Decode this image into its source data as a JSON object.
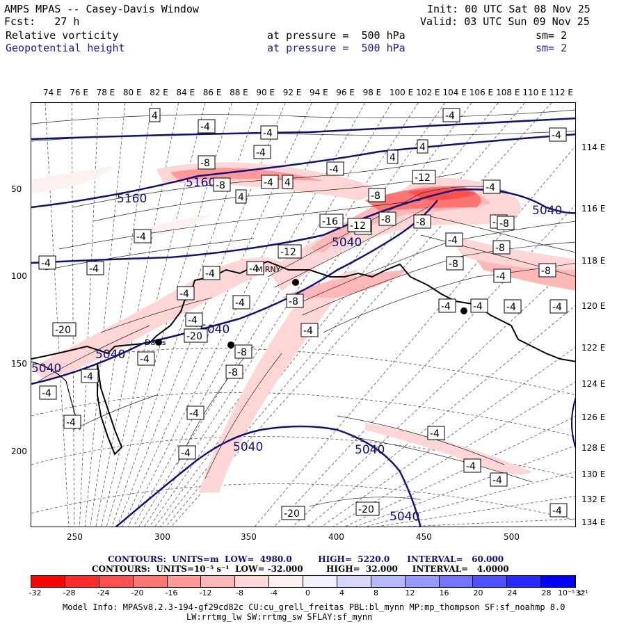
{
  "header": {
    "title": "AMPS MPAS -- Casey-Davis Window",
    "fcst": "Fcst:   27 h",
    "init": "Init: 00 UTC Sat 08 Nov 25",
    "valid": "Valid: 03 UTC Sun 09 Nov 25",
    "field1": {
      "name": "Relative vorticity",
      "pressure": "at pressure =  500 hPa",
      "sm": "sm= 2"
    },
    "field2": {
      "name": "Geopotential height",
      "pressure": "at pressure =  500 hPa",
      "sm": "sm= 2"
    }
  },
  "top_lon_labels": [
    "74 E",
    "76 E",
    "78 E",
    "80 E",
    "82 E",
    "84 E",
    "86 E",
    "88 E",
    "90 E",
    "92 E",
    "94 E",
    "96 E",
    "98 E",
    "100 E",
    "102 E",
    "104 E",
    "106 E",
    "108 E",
    "110 E",
    "112 E"
  ],
  "right_lon_labels": [
    "114 E",
    "116 E",
    "118 E",
    "120 E",
    "122 E",
    "124 E",
    "126 E",
    "128 E",
    "130 E",
    "132 E",
    "134 E"
  ],
  "y_axis": [
    "50",
    "100",
    "150",
    "200"
  ],
  "x_axis": [
    "250",
    "300",
    "350",
    "400",
    "450",
    "500"
  ],
  "place_labels": {
    "davis": "Davis",
    "mirny": "MIRNY"
  },
  "height_contour_labels": [
    "5160",
    "5160",
    "5040",
    "5040",
    "5040",
    "5040",
    "5040",
    "5040",
    "5040",
    "5040"
  ],
  "vorticity_labels": [
    "4",
    "-4",
    "-8",
    "-12",
    "-16",
    "-20",
    "-12",
    "-8",
    "-4",
    "4"
  ],
  "contour_info": {
    "line1": "CONTOURS:  UNITS=m  LOW=  4980.0         HIGH=  5220.0      INTERVAL=   60.000",
    "line2": "CONTOURS:  UNITS=10⁻⁵ s⁻¹  LOW= -32.000        HIGH=  32.000     INTERVAL=   4.0000"
  },
  "colorbar": {
    "labels": [
      "-32",
      "-28",
      "-24",
      "-20",
      "-16",
      "-12",
      "-8",
      "-4",
      "0",
      "4",
      "8",
      "12",
      "16",
      "20",
      "24",
      "28",
      "32"
    ],
    "unit": "10⁻⁵ s⁻¹",
    "colors": [
      "#ff0000",
      "#ff2a2a",
      "#ff5050",
      "#ff7474",
      "#ff9898",
      "#ffb8b8",
      "#ffd6d6",
      "#fff0f0",
      "#f0f0ff",
      "#d6d6ff",
      "#b8b8ff",
      "#9898ff",
      "#7474ff",
      "#5050ff",
      "#2a2aff",
      "#0000ff"
    ]
  },
  "model_info": {
    "line1": "Model Info: MPASv8.2.3-194-gf29cd82c CU:cu_grell_freitas PBL:bl_mynn MP:mp_thompson SF:sf_noahmp 8.0",
    "line2": "LW:rrtmg_lw SW:rrtmg_sw SFLAY:sf_mynn"
  },
  "colors": {
    "height_contour": "#10107a",
    "header_blue": "#1a1aa0"
  }
}
